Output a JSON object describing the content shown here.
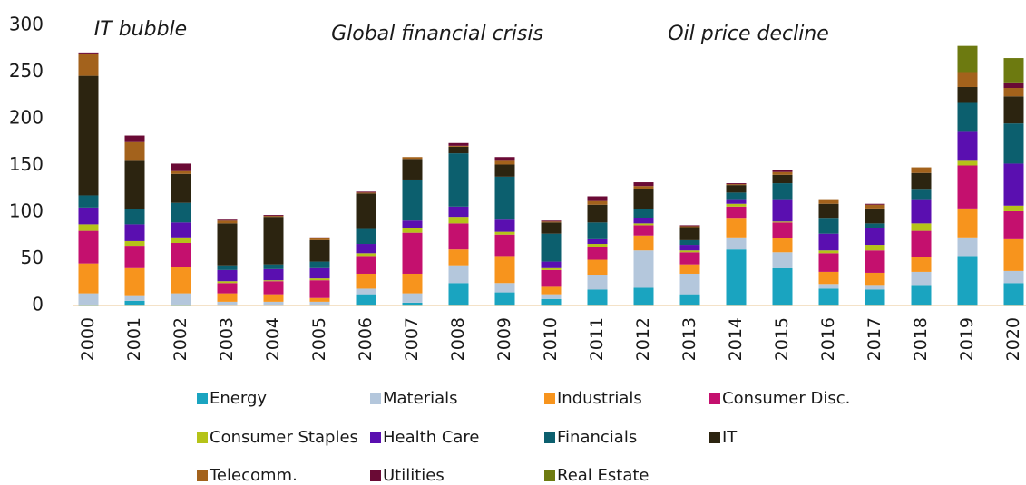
{
  "chart_data": {
    "type": "stacked-bar",
    "annotations": [
      "IT bubble",
      "Global financial crisis",
      "Oil price decline"
    ],
    "categories": [
      "2000",
      "2001",
      "2002",
      "2003",
      "2004",
      "2005",
      "2006",
      "2007",
      "2008",
      "2009",
      "2010",
      "2011",
      "2012",
      "2013",
      "2014",
      "2015",
      "2016",
      "2017",
      "2018",
      "2019",
      "2020"
    ],
    "series": [
      {
        "name": "Energy",
        "color": "#1aa4c0",
        "values": [
          1,
          5,
          1,
          0,
          0,
          0,
          12,
          3,
          24,
          14,
          7,
          17,
          19,
          12,
          60,
          40,
          18,
          17,
          22,
          53,
          24
        ]
      },
      {
        "name": "Materials",
        "color": "#b4c7dc",
        "values": [
          12,
          6,
          12,
          4,
          4,
          4,
          6,
          10,
          19,
          10,
          5,
          16,
          40,
          22,
          13,
          17,
          5,
          5,
          14,
          20,
          13
        ]
      },
      {
        "name": "Industrials",
        "color": "#f7941d",
        "values": [
          32,
          29,
          28,
          9,
          8,
          4,
          16,
          21,
          17,
          29,
          8,
          16,
          16,
          10,
          20,
          15,
          13,
          13,
          16,
          31,
          34
        ]
      },
      {
        "name": "Consumer Disc.",
        "color": "#c4106e",
        "values": [
          35,
          24,
          26,
          11,
          14,
          19,
          19,
          44,
          28,
          23,
          18,
          14,
          11,
          13,
          13,
          17,
          20,
          24,
          28,
          46,
          30
        ]
      },
      {
        "name": "Consumer Staples",
        "color": "#b5c318",
        "values": [
          7,
          5,
          6,
          2,
          1,
          2,
          3,
          5,
          7,
          3,
          2,
          3,
          2,
          2,
          3,
          1,
          3,
          6,
          8,
          5,
          6
        ]
      },
      {
        "name": "Health Care",
        "color": "#5a0fb0",
        "values": [
          18,
          18,
          16,
          12,
          12,
          11,
          10,
          8,
          11,
          13,
          7,
          5,
          6,
          6,
          4,
          23,
          18,
          18,
          25,
          31,
          45
        ]
      },
      {
        "name": "Financials",
        "color": "#0c5f6e",
        "values": [
          13,
          16,
          21,
          5,
          5,
          7,
          16,
          43,
          57,
          46,
          30,
          18,
          9,
          5,
          8,
          18,
          16,
          5,
          11,
          31,
          43
        ]
      },
      {
        "name": "IT",
        "color": "#2c2410",
        "values": [
          128,
          52,
          31,
          45,
          51,
          23,
          38,
          23,
          7,
          13,
          12,
          19,
          22,
          14,
          8,
          9,
          16,
          16,
          18,
          17,
          29
        ]
      },
      {
        "name": "Telecomm.",
        "color": "#a3621c",
        "values": [
          23,
          20,
          3,
          3,
          1,
          2,
          1,
          2,
          1,
          4,
          1,
          4,
          3,
          1,
          1,
          3,
          4,
          4,
          6,
          16,
          9
        ]
      },
      {
        "name": "Utilities",
        "color": "#6a0a35",
        "values": [
          2,
          7,
          8,
          1,
          1,
          1,
          1,
          0,
          3,
          4,
          1,
          5,
          4,
          1,
          1,
          2,
          0,
          1,
          0,
          0,
          5
        ]
      },
      {
        "name": "Real Estate",
        "color": "#6d7a10",
        "values": [
          0,
          0,
          0,
          0,
          0,
          0,
          0,
          0,
          0,
          0,
          0,
          0,
          0,
          0,
          0,
          0,
          0,
          0,
          0,
          28,
          27
        ]
      }
    ],
    "ylim": [
      0,
      300
    ],
    "yticks": [
      0,
      50,
      100,
      150,
      200,
      250,
      300
    ],
    "grid": false
  }
}
